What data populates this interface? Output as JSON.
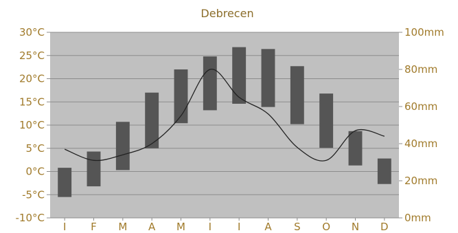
{
  "chart_data": {
    "type": "bar",
    "title": "Debrecen",
    "categories": [
      "J",
      "F",
      "M",
      "A",
      "M",
      "J",
      "J",
      "A",
      "S",
      "O",
      "N",
      "D"
    ],
    "temperature_axis": {
      "ylim": [
        -10,
        30
      ],
      "ticks": [
        30,
        25,
        20,
        15,
        10,
        5,
        0,
        -5,
        -10
      ],
      "tick_labels": [
        "30°C",
        "25°C",
        "20°C",
        "15°C",
        "10°C",
        "5°C",
        "0°C",
        "-5°C",
        "-10°C"
      ]
    },
    "precipitation_axis": {
      "ylim": [
        0,
        100
      ],
      "ticks": [
        100,
        80,
        60,
        40,
        20,
        0
      ],
      "tick_labels": [
        "100mm",
        "80mm",
        "60mm",
        "40mm",
        "20mm",
        "0mm"
      ]
    },
    "series": [
      {
        "type": "range_bar",
        "axis": "temperature",
        "low": [
          -5.5,
          -3.2,
          0.3,
          5.0,
          10.4,
          13.2,
          14.6,
          13.9,
          10.2,
          5.1,
          1.3,
          -2.7
        ],
        "high": [
          0.8,
          4.3,
          10.7,
          17.0,
          22.0,
          24.8,
          26.8,
          26.4,
          22.7,
          16.8,
          8.7,
          2.8
        ]
      },
      {
        "type": "line",
        "axis": "precipitation",
        "values": [
          37,
          31,
          34,
          40,
          55,
          80,
          65,
          56,
          38,
          31,
          47,
          44
        ]
      }
    ],
    "colors": {
      "plot_background": "#c0c0c0",
      "gridline": "#8c8c8c",
      "bar": "#555555",
      "line": "#222222",
      "tick_text": "#a07a2a",
      "title_text": "#8b6d2a"
    }
  }
}
